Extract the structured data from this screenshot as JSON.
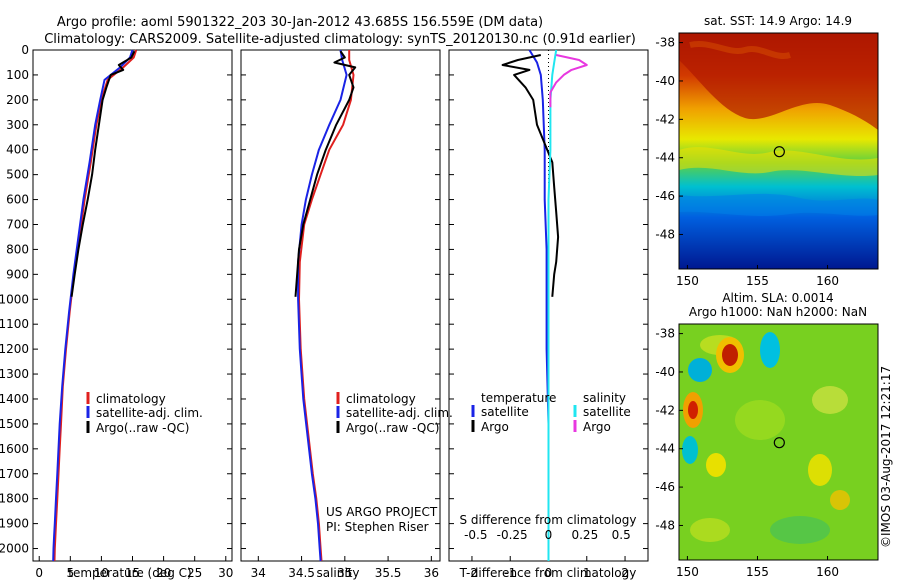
{
  "header": {
    "line1": "Argo profile: aoml 5901322_203 30-Jan-2012 43.685S 156.559E (DM data)",
    "line2": "Climatology: CARS2009. Satellite-adjusted climatology: synTS_20120130.nc (0.91d earlier)"
  },
  "colors": {
    "climatology": "#e0201e",
    "satellite": "#1a23e6",
    "argo": "#000000",
    "salinity_satellite": "#20e6f0",
    "salinity_argo": "#e838e0"
  },
  "chart_data": [
    {
      "type": "line",
      "panel": "temperature",
      "xlabel": "temperature (deg C)",
      "ylabel": "",
      "xlim": [
        -1,
        31
      ],
      "ylim": [
        2050,
        0
      ],
      "xticks": [
        "0",
        "5",
        "10",
        "15",
        "20",
        "25",
        "30"
      ],
      "xtick_values": [
        0,
        5,
        10,
        15,
        20,
        25,
        30
      ],
      "yticks": [
        "0",
        "100",
        "200",
        "300",
        "400",
        "500",
        "600",
        "700",
        "800",
        "900",
        "1000",
        "1100",
        "1200",
        "1300",
        "1400",
        "1500",
        "1600",
        "1700",
        "1800",
        "1900",
        "2000"
      ],
      "ytick_values": [
        0,
        100,
        200,
        300,
        400,
        500,
        600,
        700,
        800,
        900,
        1000,
        1100,
        1200,
        1300,
        1400,
        1500,
        1600,
        1700,
        1800,
        1900,
        2000
      ],
      "legend": [
        "climatology",
        "satellite-adj. clim.",
        "Argo(..raw -QC)"
      ],
      "series": [
        {
          "name": "climatology",
          "color_key": "climatology",
          "x": [
            15.6,
            15.2,
            13.5,
            11.0,
            10.0,
            9.2,
            8.3,
            7.3,
            6.5,
            5.6,
            4.9,
            4.3,
            3.8,
            3.5,
            3.3,
            3.1,
            2.9,
            2.7,
            2.6,
            2.5,
            2.45
          ],
          "y": [
            0,
            30,
            70,
            120,
            200,
            300,
            450,
            600,
            750,
            900,
            1050,
            1200,
            1350,
            1500,
            1600,
            1700,
            1800,
            1900,
            1950,
            2000,
            2050
          ]
        },
        {
          "name": "satellite-adj. clim.",
          "color_key": "satellite",
          "x": [
            15.0,
            14.6,
            13.0,
            10.5,
            9.8,
            9.0,
            8.1,
            7.1,
            6.3,
            5.5,
            4.8,
            4.2,
            3.7,
            3.3,
            3.1,
            2.9,
            2.7,
            2.5,
            2.4,
            2.3,
            2.25
          ],
          "y": [
            0,
            30,
            70,
            120,
            200,
            300,
            450,
            600,
            750,
            900,
            1050,
            1200,
            1350,
            1500,
            1600,
            1700,
            1800,
            1900,
            1950,
            2000,
            2050
          ]
        },
        {
          "name": "Argo(..raw -QC)",
          "color_key": "argo",
          "x": [
            15.3,
            14.8,
            12.8,
            13.5,
            11.5,
            10.8,
            10.2,
            9.6,
            9.0,
            8.5,
            7.8,
            7.0,
            6.3,
            5.7,
            5.2
          ],
          "y": [
            5,
            30,
            60,
            80,
            100,
            150,
            200,
            300,
            400,
            500,
            600,
            700,
            800,
            900,
            990
          ]
        }
      ]
    },
    {
      "type": "line",
      "panel": "salinity",
      "xlabel": "salinity",
      "xlim": [
        33.8,
        36.1
      ],
      "ylim": [
        2050,
        0
      ],
      "xticks": [
        "34",
        "34.5",
        "35",
        "35.5",
        "36"
      ],
      "xtick_values": [
        34,
        34.5,
        35,
        35.5,
        36
      ],
      "legend": [
        "climatology",
        "satellite-adj. clim.",
        "Argo(..raw -QC)"
      ],
      "annotation": [
        "US ARGO PROJECT",
        "PI: Stephen Riser"
      ],
      "series": [
        {
          "name": "climatology",
          "color_key": "climatology",
          "x": [
            35.05,
            35.05,
            35.1,
            35.07,
            34.98,
            34.82,
            34.72,
            34.62,
            34.53,
            34.48,
            34.47,
            34.49,
            34.53,
            34.58,
            34.63,
            34.67,
            34.7,
            34.72,
            34.73
          ],
          "y": [
            0,
            40,
            100,
            200,
            300,
            400,
            500,
            600,
            700,
            850,
            1000,
            1200,
            1400,
            1550,
            1700,
            1800,
            1900,
            2000,
            2050
          ]
        },
        {
          "name": "satellite-adj. clim.",
          "color_key": "satellite",
          "x": [
            34.95,
            34.97,
            35.02,
            34.95,
            34.82,
            34.7,
            34.62,
            34.55,
            34.5,
            34.46,
            34.46,
            34.48,
            34.52,
            34.57,
            34.62,
            34.66,
            34.69,
            34.71,
            34.72
          ],
          "y": [
            0,
            40,
            100,
            200,
            300,
            400,
            500,
            600,
            700,
            850,
            1000,
            1200,
            1400,
            1550,
            1700,
            1800,
            1900,
            2000,
            2050
          ]
        },
        {
          "name": "Argo(..raw -QC)",
          "color_key": "argo",
          "x": [
            34.95,
            35.0,
            34.88,
            35.12,
            35.05,
            35.1,
            35.05,
            34.9,
            34.78,
            34.68,
            34.6,
            34.52,
            34.47,
            34.43
          ],
          "y": [
            5,
            30,
            50,
            70,
            100,
            150,
            200,
            300,
            400,
            500,
            600,
            700,
            800,
            990
          ]
        }
      ]
    },
    {
      "type": "line",
      "panel": "difference",
      "xlabel": "T difference from climatology",
      "xlabel_top": "S difference from climatology",
      "xlim": [
        -2.6,
        2.6
      ],
      "ylim": [
        2050,
        0
      ],
      "xticks": [
        "-2",
        "-1",
        "0",
        "1",
        "2"
      ],
      "xtick_values": [
        -2,
        -1,
        0,
        1,
        2
      ],
      "xticks_top": [
        "-0.5",
        "-0.25",
        "0",
        "0.25",
        "0.5"
      ],
      "xtick_top_values": [
        -1.9,
        -0.95,
        0,
        0.95,
        1.9
      ],
      "legend_left_title": "temperature",
      "legend_right_title": "salinity",
      "legend_left": [
        "satellite",
        "Argo"
      ],
      "legend_right": [
        "satellite",
        "Argo"
      ],
      "series": [
        {
          "name": "satellite",
          "color_key": "satellite",
          "x": [
            -0.5,
            -0.3,
            -0.2,
            -0.15,
            -0.1,
            -0.1,
            -0.05,
            -0.05,
            -0.05,
            0.0,
            0.0,
            0.0
          ],
          "y": [
            0,
            50,
            100,
            200,
            400,
            600,
            800,
            1000,
            1200,
            1500,
            1800,
            2050
          ]
        },
        {
          "name": "Argo",
          "color_key": "argo",
          "x": [
            -0.2,
            -0.8,
            -1.2,
            -0.5,
            -0.9,
            -0.6,
            -0.4,
            -0.3,
            0.1,
            0.15,
            0.2,
            0.25,
            0.2,
            0.15,
            0.1
          ],
          "y": [
            20,
            40,
            60,
            80,
            100,
            150,
            200,
            300,
            450,
            550,
            650,
            750,
            850,
            900,
            990
          ]
        },
        {
          "name": "salinity satellite",
          "color_key": "salinity_satellite",
          "x": [
            0.2,
            0.15,
            0.1,
            0.05,
            0.05,
            0.0,
            0.0,
            0.0,
            0.0,
            0.0,
            0.0
          ],
          "y": [
            0,
            50,
            100,
            200,
            400,
            600,
            900,
            1200,
            1500,
            1800,
            2050
          ]
        },
        {
          "name": "salinity Argo",
          "color_key": "salinity_argo",
          "x": [
            0.2,
            0.8,
            1.0,
            0.6,
            0.4,
            0.2,
            0.05,
            0.05
          ],
          "y": [
            20,
            40,
            60,
            80,
            100,
            130,
            170,
            230
          ]
        }
      ]
    },
    {
      "type": "heatmap",
      "panel": "sst-map",
      "title": "sat. SST: 14.9 Argo: 14.9",
      "xticks": [
        "150",
        "155",
        "160"
      ],
      "xtick_values": [
        150,
        155,
        160
      ],
      "yticks": [
        "-38",
        "-40",
        "-42",
        "-44",
        "-46",
        "-48"
      ],
      "ytick_values": [
        -38,
        -40,
        -42,
        -44,
        -46,
        -48
      ],
      "xlim": [
        149.4,
        163.6
      ],
      "ylim": [
        -49.8,
        -37.5
      ],
      "marker": [
        156.559,
        -43.685
      ]
    },
    {
      "type": "heatmap",
      "panel": "sla-map",
      "title_lines": [
        "Altim. SLA: 0.0014",
        "Argo h1000: NaN h2000: NaN"
      ],
      "xticks": [
        "150",
        "155",
        "160"
      ],
      "xtick_values": [
        150,
        155,
        160
      ],
      "yticks": [
        "-38",
        "-40",
        "-42",
        "-44",
        "-46",
        "-48"
      ],
      "ytick_values": [
        -38,
        -40,
        -42,
        -44,
        -46,
        -48
      ],
      "xlim": [
        149.4,
        163.6
      ],
      "ylim": [
        -49.8,
        -37.5
      ],
      "marker": [
        156.559,
        -43.685
      ]
    }
  ],
  "credit": "©IMOS 03-Aug-2017 12:21:17"
}
